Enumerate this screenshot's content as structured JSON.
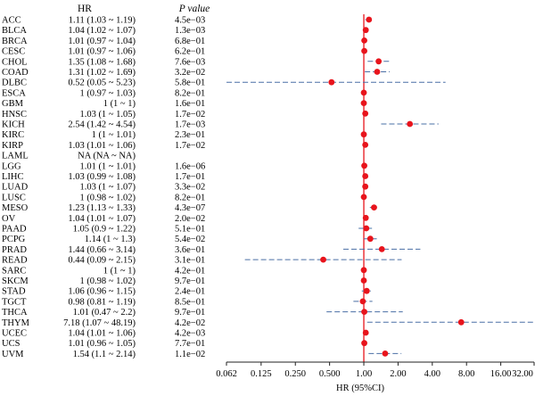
{
  "chart_data": {
    "type": "forest",
    "columns": {
      "hr": "HR",
      "p": "P value"
    },
    "xlabel": "HR (95%CI)",
    "x_scale": "log2",
    "xlim": [
      0.062,
      32.0
    ],
    "x_ticks": [
      "0.062",
      "0.125",
      "0.250",
      "0.500",
      "1.00",
      "2.00",
      "4.00",
      "8.00",
      "16.00",
      "32.00"
    ],
    "reference_line": 1.0,
    "colors": {
      "point": "#e8141c",
      "ci": "#4a6fa5",
      "reference": "#e8141c",
      "axis": "#222222"
    },
    "rows": [
      {
        "label": "ACC",
        "hr_text": "1.11 (1.03 ~ 1.19)",
        "p": "4.5e−03",
        "hr": 1.11,
        "lo": 1.03,
        "hi": 1.19
      },
      {
        "label": "BLCA",
        "hr_text": "1.04 (1.02 ~ 1.07)",
        "p": "1.3e−03",
        "hr": 1.04,
        "lo": 1.02,
        "hi": 1.07
      },
      {
        "label": "BRCA",
        "hr_text": "1.01 (0.97 ~ 1.04)",
        "p": "6.8e−01",
        "hr": 1.01,
        "lo": 0.97,
        "hi": 1.04
      },
      {
        "label": "CESC",
        "hr_text": "1.01 (0.97 ~ 1.06)",
        "p": "6.2e−01",
        "hr": 1.01,
        "lo": 0.97,
        "hi": 1.06
      },
      {
        "label": "CHOL",
        "hr_text": "1.35 (1.08 ~ 1.68)",
        "p": "7.6e−03",
        "hr": 1.35,
        "lo": 1.08,
        "hi": 1.68
      },
      {
        "label": "COAD",
        "hr_text": "1.31 (1.02 ~ 1.69)",
        "p": "3.2e−02",
        "hr": 1.31,
        "lo": 1.02,
        "hi": 1.69
      },
      {
        "label": "DLBC",
        "hr_text": "0.52 (0.05 ~ 5.23)",
        "p": "5.8e−01",
        "hr": 0.52,
        "lo": 0.05,
        "hi": 5.23
      },
      {
        "label": "ESCA",
        "hr_text": "1 (0.97 ~ 1.03)",
        "p": "8.2e−01",
        "hr": 1.0,
        "lo": 0.97,
        "hi": 1.03
      },
      {
        "label": "GBM",
        "hr_text": "1 (1 ~ 1)",
        "p": "1.6e−01",
        "hr": 1.0,
        "lo": 1.0,
        "hi": 1.0
      },
      {
        "label": "HNSC",
        "hr_text": "1.03 (1 ~ 1.05)",
        "p": "1.7e−02",
        "hr": 1.03,
        "lo": 1.0,
        "hi": 1.05
      },
      {
        "label": "KICH",
        "hr_text": "2.54 (1.42 ~ 4.54)",
        "p": "1.7e−03",
        "hr": 2.54,
        "lo": 1.42,
        "hi": 4.54
      },
      {
        "label": "KIRC",
        "hr_text": "1 (1 ~ 1.01)",
        "p": "2.3e−01",
        "hr": 1.0,
        "lo": 1.0,
        "hi": 1.01
      },
      {
        "label": "KIRP",
        "hr_text": "1.03 (1.01 ~ 1.06)",
        "p": "1.7e−02",
        "hr": 1.03,
        "lo": 1.01,
        "hi": 1.06
      },
      {
        "label": "LAML",
        "hr_text": "NA (NA ~ NA)",
        "p": "",
        "hr": null,
        "lo": null,
        "hi": null
      },
      {
        "label": "LGG",
        "hr_text": "1.01 (1 ~ 1.01)",
        "p": "1.6e−06",
        "hr": 1.01,
        "lo": 1.0,
        "hi": 1.01
      },
      {
        "label": "LIHC",
        "hr_text": "1.03 (0.99 ~ 1.08)",
        "p": "1.7e−01",
        "hr": 1.03,
        "lo": 0.99,
        "hi": 1.08
      },
      {
        "label": "LUAD",
        "hr_text": "1.03 (1 ~ 1.07)",
        "p": "3.3e−02",
        "hr": 1.03,
        "lo": 1.0,
        "hi": 1.07
      },
      {
        "label": "LUSC",
        "hr_text": "1 (0.98 ~ 1.02)",
        "p": "8.2e−01",
        "hr": 1.0,
        "lo": 0.98,
        "hi": 1.02
      },
      {
        "label": "MESO",
        "hr_text": "1.23 (1.13 ~ 1.33)",
        "p": "4.3e−07",
        "hr": 1.23,
        "lo": 1.13,
        "hi": 1.33
      },
      {
        "label": "OV",
        "hr_text": "1.04 (1.01 ~ 1.07)",
        "p": "2.0e−02",
        "hr": 1.04,
        "lo": 1.01,
        "hi": 1.07
      },
      {
        "label": "PAAD",
        "hr_text": "1.05 (0.9 ~ 1.22)",
        "p": "5.1e−01",
        "hr": 1.05,
        "lo": 0.9,
        "hi": 1.22
      },
      {
        "label": "PCPG",
        "hr_text": "1.14 (1 ~ 1.3)",
        "p": "5.4e−02",
        "hr": 1.14,
        "lo": 1.0,
        "hi": 1.3
      },
      {
        "label": "PRAD",
        "hr_text": "1.44 (0.66 ~ 3.14)",
        "p": "3.6e−01",
        "hr": 1.44,
        "lo": 0.66,
        "hi": 3.14
      },
      {
        "label": "READ",
        "hr_text": "0.44 (0.09 ~ 2.15)",
        "p": "3.1e−01",
        "hr": 0.44,
        "lo": 0.09,
        "hi": 2.15
      },
      {
        "label": "SARC",
        "hr_text": "1 (1 ~ 1)",
        "p": "4.2e−01",
        "hr": 1.0,
        "lo": 1.0,
        "hi": 1.0
      },
      {
        "label": "SKCM",
        "hr_text": "1 (0.98 ~ 1.02)",
        "p": "9.7e−01",
        "hr": 1.0,
        "lo": 0.98,
        "hi": 1.02
      },
      {
        "label": "STAD",
        "hr_text": "1.06 (0.96 ~ 1.15)",
        "p": "2.4e−01",
        "hr": 1.06,
        "lo": 0.96,
        "hi": 1.15
      },
      {
        "label": "TGCT",
        "hr_text": "0.98 (0.81 ~ 1.19)",
        "p": "8.5e−01",
        "hr": 0.98,
        "lo": 0.81,
        "hi": 1.19
      },
      {
        "label": "THCA",
        "hr_text": "1.01 (0.47 ~ 2.2)",
        "p": "9.7e−01",
        "hr": 1.01,
        "lo": 0.47,
        "hi": 2.2
      },
      {
        "label": "THYM",
        "hr_text": "7.18 (1.07 ~ 48.19)",
        "p": "4.2e−02",
        "hr": 7.18,
        "lo": 1.07,
        "hi": 48.19
      },
      {
        "label": "UCEC",
        "hr_text": "1.04 (1.01 ~ 1.06)",
        "p": "4.2e−03",
        "hr": 1.04,
        "lo": 1.01,
        "hi": 1.06
      },
      {
        "label": "UCS",
        "hr_text": "1.01 (0.96 ~ 1.05)",
        "p": "7.7e−01",
        "hr": 1.01,
        "lo": 0.96,
        "hi": 1.05
      },
      {
        "label": "UVM",
        "hr_text": "1.54 (1.1 ~ 2.14)",
        "p": "1.1e−02",
        "hr": 1.54,
        "lo": 1.1,
        "hi": 2.14
      }
    ]
  }
}
